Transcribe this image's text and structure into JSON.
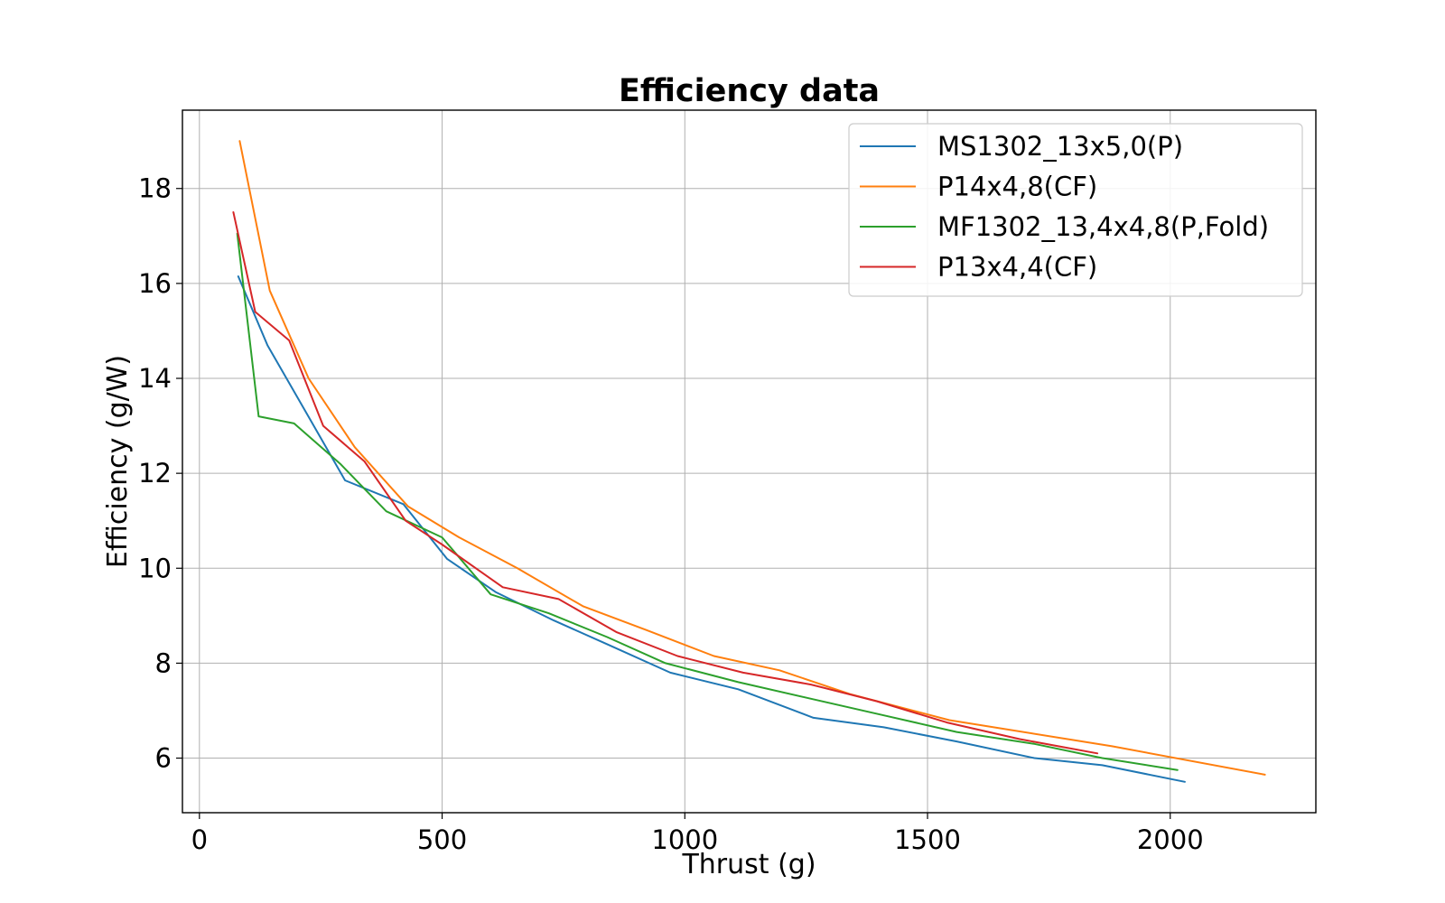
{
  "chart_data": {
    "type": "line",
    "title": "Efficiency data",
    "xlabel": "Thrust (g)",
    "ylabel": "Efficiency (g/W)",
    "xlim": [
      -35,
      2300
    ],
    "ylim": [
      4.85,
      19.65
    ],
    "xticks": [
      0,
      500,
      1000,
      1500,
      2000
    ],
    "yticks": [
      6,
      8,
      10,
      12,
      14,
      16,
      18
    ],
    "grid": true,
    "legend_position": "top-right",
    "series": [
      {
        "name": "MS1302_13x5,0(P)",
        "color": "#1f77b4",
        "x": [
          80,
          140,
          230,
          300,
          420,
          510,
          610,
          730,
          840,
          970,
          1110,
          1265,
          1410,
          1560,
          1720,
          1860,
          2030
        ],
        "y": [
          16.15,
          14.7,
          13.1,
          11.85,
          11.35,
          10.2,
          9.5,
          8.9,
          8.4,
          7.8,
          7.45,
          6.85,
          6.65,
          6.35,
          6.0,
          5.85,
          5.5
        ]
      },
      {
        "name": "P14x4,8(CF)",
        "color": "#ff7f0e",
        "x": [
          83,
          145,
          225,
          320,
          430,
          535,
          655,
          790,
          920,
          1060,
          1195,
          1340,
          1545,
          1880,
          2195
        ],
        "y": [
          19.0,
          15.85,
          14.0,
          12.55,
          11.3,
          10.65,
          10.0,
          9.2,
          8.7,
          8.15,
          7.85,
          7.35,
          6.8,
          6.25,
          5.65
        ]
      },
      {
        "name": "MF1302_13,4x4,8(P,Fold)",
        "color": "#2ca02c",
        "x": [
          78,
          122,
          195,
          290,
          385,
          500,
          600,
          720,
          840,
          960,
          1110,
          1260,
          1410,
          1560,
          1720,
          1860,
          2015
        ],
        "y": [
          17.05,
          13.2,
          13.05,
          12.2,
          11.2,
          10.65,
          9.45,
          9.05,
          8.55,
          8.0,
          7.6,
          7.25,
          6.9,
          6.55,
          6.3,
          6.0,
          5.75
        ]
      },
      {
        "name": "P13x4,4(CF)",
        "color": "#d62728",
        "x": [
          70,
          115,
          185,
          255,
          340,
          425,
          500,
          625,
          740,
          860,
          985,
          1120,
          1260,
          1395,
          1540,
          1690,
          1850
        ],
        "y": [
          17.5,
          15.4,
          14.8,
          13.0,
          12.25,
          11.0,
          10.5,
          9.6,
          9.35,
          8.65,
          8.15,
          7.8,
          7.55,
          7.2,
          6.75,
          6.4,
          6.1
        ]
      }
    ]
  }
}
